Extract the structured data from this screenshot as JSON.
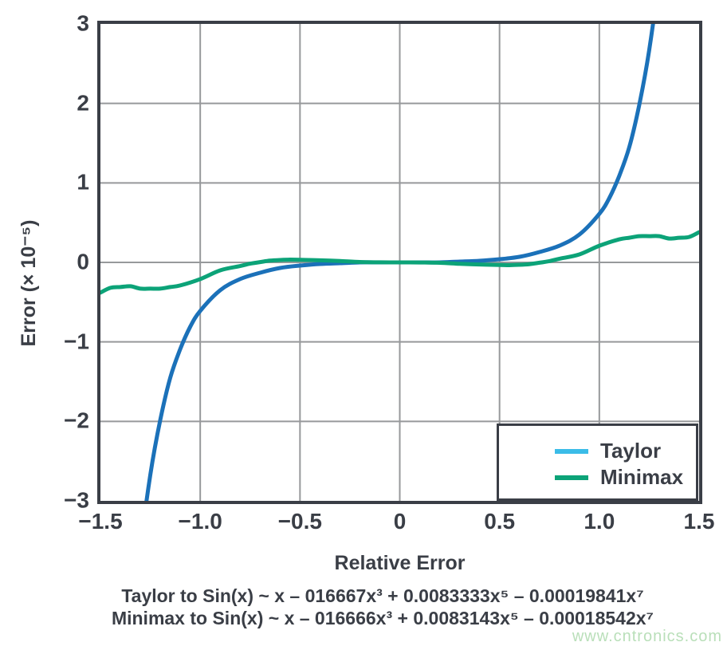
{
  "figure": {
    "y_axis_title": "Error (× 10⁻⁵)",
    "x_axis_title": "Relative Error",
    "captions": [
      "Taylor to Sin(x) ~ x – 016667x³ + 0.0083333x⁵ – 0.00019841x⁷",
      "Minimax to Sin(x) ~ x – 016666x³ + 0.0083143x⁵ – 0.00018542x⁷"
    ],
    "watermark": "www.cntronics.com"
  },
  "colors": {
    "axis": "#3A3E46",
    "grid": "#97999B",
    "taylor_curve": "#1B71B9",
    "taylor_legend_swatch": "#3BBCE8",
    "minimax": "#0CA378",
    "watermark": "#B9DFB9",
    "background": "#FFFFFF"
  },
  "chart_data": {
    "type": "line",
    "title": "",
    "xlabel": "Relative Error",
    "ylabel": "Error (× 10⁻⁵)",
    "xlim": [
      -1.5,
      1.5
    ],
    "ylim": [
      -3,
      3
    ],
    "grid": true,
    "x_gridlines": [
      -1.0,
      -0.5,
      0,
      0.5,
      1.0
    ],
    "y_gridlines": [
      -2,
      -1,
      0,
      1,
      2
    ],
    "x_ticks": [
      {
        "v": -1.5,
        "label": "−1.5"
      },
      {
        "v": -1.0,
        "label": "−1.0"
      },
      {
        "v": -0.5,
        "label": "−0.5"
      },
      {
        "v": 0,
        "label": "0"
      },
      {
        "v": 0.5,
        "label": "0.5"
      },
      {
        "v": 1.0,
        "label": "1.0"
      },
      {
        "v": 1.5,
        "label": "1.5"
      }
    ],
    "y_ticks": [
      {
        "v": 3,
        "label": "3"
      },
      {
        "v": 2,
        "label": "2"
      },
      {
        "v": 1,
        "label": "1"
      },
      {
        "v": 0,
        "label": "0"
      },
      {
        "v": -1,
        "label": "−1"
      },
      {
        "v": -2,
        "label": "−2"
      },
      {
        "v": -3,
        "label": "−3"
      }
    ],
    "legend_position": "bottom-right",
    "legend": [
      {
        "label": "Taylor",
        "color": "#3BBCE8"
      },
      {
        "label": "Minimax",
        "color": "#0CA378"
      }
    ],
    "series": [
      {
        "name": "Taylor",
        "color": "#1B71B9",
        "x": [
          -1.35,
          -1.3,
          -1.25,
          -1.2,
          -1.15,
          -1.1,
          -1.05,
          -1.0,
          -0.9,
          -0.8,
          -0.7,
          -0.6,
          -0.5,
          -0.4,
          -0.3,
          -0.2,
          -0.1,
          0,
          0.1,
          0.2,
          0.3,
          0.4,
          0.5,
          0.6,
          0.7,
          0.8,
          0.9,
          1.0,
          1.05,
          1.1,
          1.15,
          1.2,
          1.25,
          1.3,
          1.35
        ],
        "values": [
          -4.86,
          -3.62,
          -2.67,
          -1.98,
          -1.45,
          -1.09,
          -0.81,
          -0.61,
          -0.35,
          -0.21,
          -0.13,
          -0.07,
          -0.04,
          -0.02,
          -0.01,
          0,
          0,
          0,
          0,
          0,
          0.01,
          0.02,
          0.04,
          0.07,
          0.13,
          0.21,
          0.35,
          0.61,
          0.81,
          1.09,
          1.45,
          1.98,
          2.67,
          3.62,
          4.86
        ]
      },
      {
        "name": "Minimax",
        "color": "#0CA378",
        "x": [
          -1.5,
          -1.45,
          -1.4,
          -1.35,
          -1.3,
          -1.25,
          -1.2,
          -1.15,
          -1.1,
          -1.0,
          -0.9,
          -0.8,
          -0.75,
          -0.7,
          -0.65,
          -0.6,
          -0.55,
          -0.5,
          -0.4,
          -0.3,
          -0.2,
          -0.1,
          0,
          0.1,
          0.2,
          0.3,
          0.4,
          0.5,
          0.55,
          0.6,
          0.65,
          0.7,
          0.75,
          0.8,
          0.9,
          1.0,
          1.1,
          1.15,
          1.2,
          1.25,
          1.3,
          1.35,
          1.4,
          1.45,
          1.5
        ],
        "values": [
          -0.38,
          -0.32,
          -0.31,
          -0.3,
          -0.33,
          -0.33,
          -0.33,
          -0.31,
          -0.29,
          -0.21,
          -0.1,
          -0.046,
          -0.016,
          0.004,
          0.022,
          0.03,
          0.035,
          0.033,
          0.026,
          0.018,
          0.005,
          0.001,
          0,
          -0.001,
          -0.005,
          -0.018,
          -0.026,
          -0.033,
          -0.035,
          -0.03,
          -0.022,
          -0.004,
          0.016,
          0.046,
          0.1,
          0.21,
          0.29,
          0.31,
          0.33,
          0.33,
          0.33,
          0.3,
          0.31,
          0.32,
          0.38
        ]
      }
    ]
  }
}
